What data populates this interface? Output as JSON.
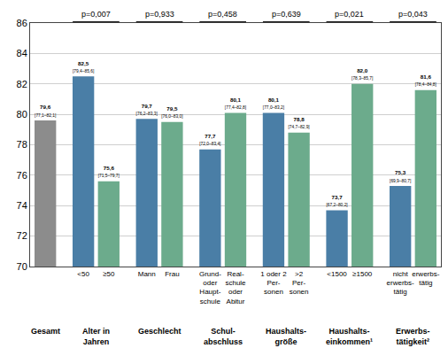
{
  "chart_data": {
    "type": "bar",
    "ylim": [
      70,
      86
    ],
    "yticks": [
      70,
      72,
      74,
      76,
      78,
      80,
      82,
      84,
      86
    ],
    "grid": true,
    "data_labels": true,
    "groups": [
      {
        "label": "Gesamt",
        "categories": [
          null
        ],
        "values": [
          79.6
        ],
        "value_labels": [
          "79,6"
        ],
        "ci_labels": [
          "[77,1–82,1]"
        ],
        "colors": [
          "#8c8c8c"
        ]
      },
      {
        "label": "Alter in\nJahren",
        "p_label": "p=0,007",
        "categories": [
          "<50",
          "≥50"
        ],
        "values": [
          82.5,
          75.6
        ],
        "value_labels": [
          "82,5",
          "75,6"
        ],
        "ci_labels": [
          "[79,4–85,6]",
          "[71,5–79,7]"
        ],
        "colors": [
          "#4a7ea6",
          "#6cab8c"
        ]
      },
      {
        "label": "Geschlecht",
        "p_label": "p=0,933",
        "categories": [
          "Mann",
          "Frau"
        ],
        "values": [
          79.7,
          79.5
        ],
        "value_labels": [
          "79,7",
          "79,5"
        ],
        "ci_labels": [
          "[76,2–83,3]",
          "[76,0–83,0]"
        ],
        "colors": [
          "#4a7ea6",
          "#6cab8c"
        ]
      },
      {
        "label": "Schul-\nabschluss",
        "p_label": "p=0,458",
        "categories": [
          "Grund-\noder\nHaupt-\nschule",
          "Real-\nschule\noder\nAbitur"
        ],
        "values": [
          77.7,
          80.1
        ],
        "value_labels": [
          "77,7",
          "80,1"
        ],
        "ci_labels": [
          "[72,0–83,4]",
          "[77,4–82,8]"
        ],
        "colors": [
          "#4a7ea6",
          "#6cab8c"
        ]
      },
      {
        "label": "Haushalts-\ngröße",
        "p_label": "p=0,639",
        "categories": [
          "1 oder 2\nPer-\nsonen",
          ">2\nPer-\nsonen"
        ],
        "values": [
          80.1,
          78.8
        ],
        "value_labels": [
          "80,1",
          "78,8"
        ],
        "ci_labels": [
          "[77,0–83,2]",
          "[74,7–82,9]"
        ],
        "colors": [
          "#4a7ea6",
          "#6cab8c"
        ]
      },
      {
        "label": "Haushalts-\neinkommen¹",
        "p_label": "p=0,021",
        "categories": [
          "<1500",
          "≥1500"
        ],
        "values": [
          73.7,
          82.0
        ],
        "value_labels": [
          "73,7",
          "82,0"
        ],
        "ci_labels": [
          "[67,2–80,2]",
          "[78,3–85,7]"
        ],
        "colors": [
          "#4a7ea6",
          "#6cab8c"
        ]
      },
      {
        "label": "Erwerbs-\ntätigkeit²",
        "p_label": "p=0,043",
        "categories": [
          "nicht\nerwerbs-\ntätig",
          "erwerbs-\ntätig"
        ],
        "values": [
          75.3,
          81.6
        ],
        "value_labels": [
          "75,3",
          "81,6"
        ],
        "ci_labels": [
          "[69,9–80,7]",
          "[78,4–84,8]"
        ],
        "colors": [
          "#4a7ea6",
          "#6cab8c"
        ]
      }
    ]
  }
}
